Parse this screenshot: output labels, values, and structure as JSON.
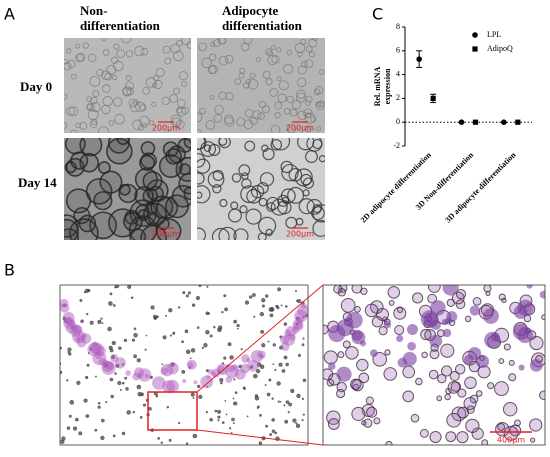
{
  "panel_a": {
    "label": "A",
    "columns": [
      [
        "Non-",
        "differentiation"
      ],
      [
        "Adipocyte",
        "differentiation"
      ]
    ],
    "rows": [
      "Day 0",
      "Day 14"
    ],
    "scale_bars": [
      "200μm",
      "200μm",
      "200μm",
      "200μm"
    ]
  },
  "panel_b": {
    "label": "B",
    "scale_bar": "400μm"
  },
  "chart_data": {
    "type": "scatter",
    "label": "C",
    "ylabel": [
      "Rel. mRNA",
      "expression"
    ],
    "categories": [
      "2D adipocyte differentiation",
      "3D Non-differentiation",
      "3D adipocyte differentiation"
    ],
    "series": [
      {
        "name": "LPL",
        "marker": "circle",
        "color": "#000000",
        "values": [
          5.3,
          0,
          0
        ],
        "errors": [
          0.7,
          0,
          0
        ]
      },
      {
        "name": "AdipoQ",
        "marker": "square",
        "color": "#000000",
        "values": [
          2.0,
          0,
          0
        ],
        "errors": [
          0.35,
          0,
          0
        ]
      }
    ],
    "ylim": [
      -2,
      8
    ],
    "yticks": [
      -2,
      0,
      2,
      4,
      6,
      8
    ],
    "zero_line": "dotted",
    "legend": "top-right"
  }
}
